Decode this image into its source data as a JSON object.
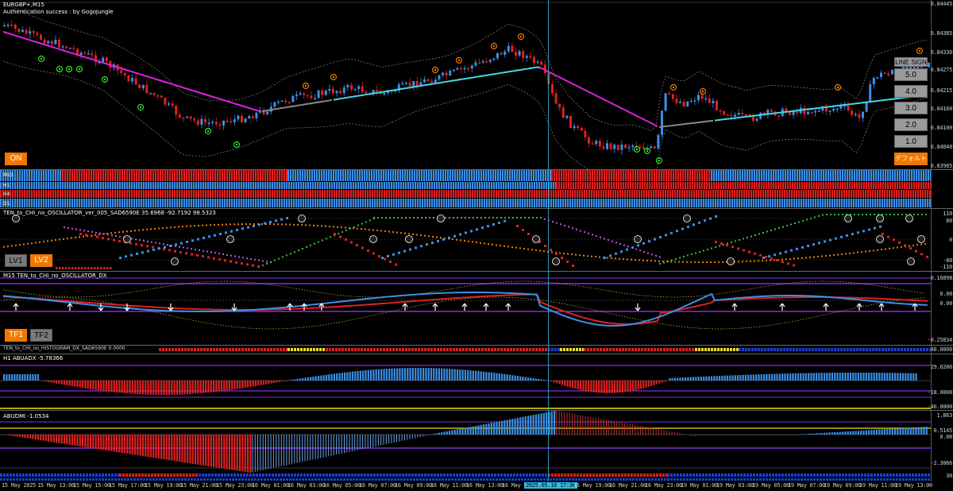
{
  "chart_header": {
    "symbol": "EURGBP+,M15",
    "auth_message": "Authentication success : by GogoJungle"
  },
  "price_axis": [
    "0.84445",
    "0.84385",
    "0.84330",
    "0.84275",
    "0.84215",
    "0.84160",
    "0.84100",
    "0.84040",
    "0.83985",
    "0.83925"
  ],
  "current_price_label": "0.84445",
  "main_buttons": {
    "on_label": "ON",
    "line_sign_label": "LINE SIGN",
    "line_values": [
      "5.0",
      "4.0",
      "3.0",
      "2.0",
      "1.0"
    ],
    "default_label": "デフォルト"
  },
  "mtf_bars": {
    "labels": [
      "M15",
      "H1",
      "H4",
      "D1"
    ]
  },
  "osc1": {
    "title": "TEN_to_CHI_no_OSCILLATOR_ver_005_SAD6590E 35.6968 -92.7192 98.5323",
    "axis": [
      "110",
      "80",
      "0",
      "-80",
      "-110"
    ],
    "buttons": [
      "LV1",
      "LV2"
    ]
  },
  "osc2": {
    "title": "M15 TEN_to_CHI_no_OSCILLATOR_DX",
    "axis": [
      "0.16898",
      "0.00",
      "0.00",
      "-0.25834"
    ],
    "buttons": [
      "TF1",
      "TF2"
    ]
  },
  "histo_strip": {
    "title": "TEN_to_CHI_no_HISTOGRAM_DX_SAD6590E 0.0000",
    "axis": "40.0000"
  },
  "abuadx": {
    "title": "H1 ABUADX -5.78366",
    "axis": [
      "29.6206",
      "-18.0000",
      "-40.0000"
    ]
  },
  "abudmi": {
    "title": "ABUDMI -1.0534",
    "axis": [
      "1.863",
      "0.5145",
      "0.00",
      "-2.3066",
      "30"
    ]
  },
  "time_axis": [
    "15 May 2025",
    "15 May 13:00",
    "15 May 15:00",
    "15 May 17:00",
    "15 May 19:00",
    "15 May 21:00",
    "15 May 23:00",
    "16 May 01:00",
    "16 May 03:00",
    "16 May 05:00",
    "16 May 07:00",
    "16 May 09:00",
    "16 May 11:00",
    "16 May 13:00",
    "16 May 1",
    "2025.05.16 17:30",
    "16 May 19:00",
    "16 May 21:00",
    "16 May 23:00",
    "19 May 01:00",
    "19 May 03:00",
    "19 May 05:00",
    "19 May 07:00",
    "19 May 09:00",
    "19 May 11:00",
    "19 May 13:00"
  ],
  "crosshair_time": "2025.05.16 17:30",
  "colors": {
    "bull": "#3b8fe6",
    "bear": "#e02020",
    "ma_magenta": "#e020e0",
    "ma_cyan": "#40d8e8",
    "purple_line": "#8a2be2",
    "orange": "#f07800"
  }
}
